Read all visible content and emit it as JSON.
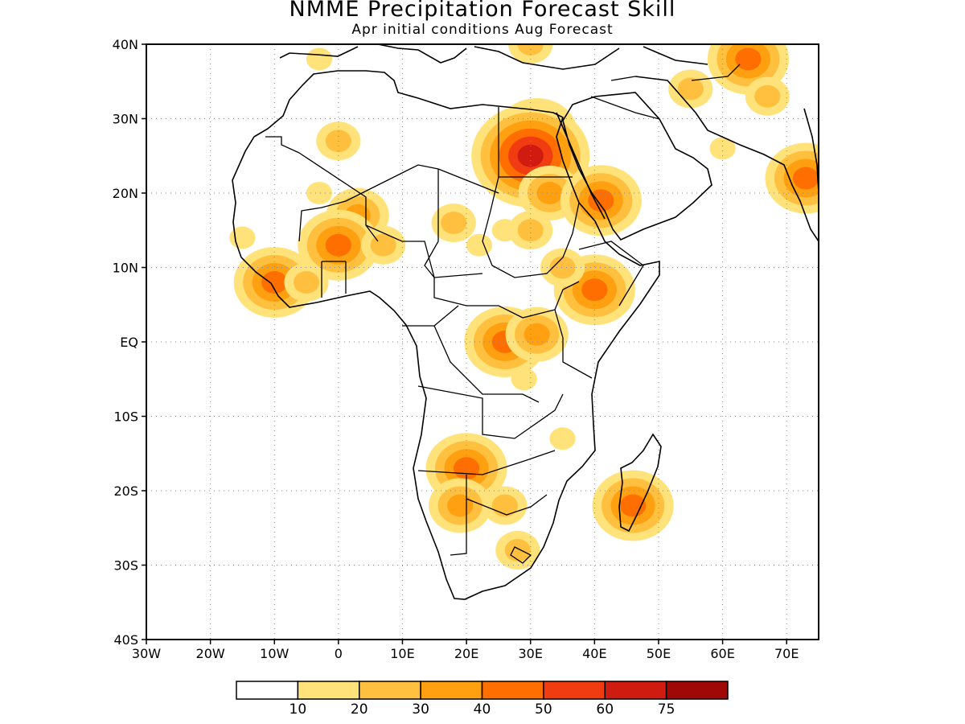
{
  "title": "NMME Precipitation Forecast Skill",
  "subtitle": "Apr initial conditions  Aug Forecast",
  "lat_ticks": [
    "40N",
    "30N",
    "20N",
    "10N",
    "EQ",
    "10S",
    "20S",
    "30S",
    "40S"
  ],
  "lon_ticks": [
    "30W",
    "20W",
    "10W",
    "0",
    "10E",
    "20E",
    "30E",
    "40E",
    "50E",
    "60E",
    "70E"
  ],
  "colorbar": {
    "boundaries": [
      "10",
      "20",
      "30",
      "40",
      "50",
      "60",
      "75"
    ],
    "colors": [
      "#ffffff",
      "#ffe37a",
      "#ffc040",
      "#ffa010",
      "#ff6e00",
      "#f03c10",
      "#d01c10",
      "#a00808"
    ]
  },
  "map_extent": {
    "lon": [
      -30,
      75
    ],
    "lat": [
      -40,
      40
    ]
  },
  "skill_regions": [
    {
      "lon": 31,
      "lat": 28,
      "level": 4
    },
    {
      "lon": 30,
      "lat": 25,
      "level": 6
    },
    {
      "lon": 33,
      "lat": 20,
      "level": 3
    },
    {
      "lon": 30,
      "lat": 15,
      "level": 2
    },
    {
      "lon": 26,
      "lat": 15,
      "level": 1
    },
    {
      "lon": 0,
      "lat": 27,
      "level": 2
    },
    {
      "lon": -3,
      "lat": 20,
      "level": 1
    },
    {
      "lon": 3,
      "lat": 17,
      "level": 3
    },
    {
      "lon": 0,
      "lat": 13,
      "level": 4
    },
    {
      "lon": 7,
      "lat": 13,
      "level": 2
    },
    {
      "lon": -10,
      "lat": 8,
      "level": 4
    },
    {
      "lon": -5,
      "lat": 8,
      "level": 2
    },
    {
      "lon": -15,
      "lat": 14,
      "level": 1
    },
    {
      "lon": 18,
      "lat": 16,
      "level": 2
    },
    {
      "lon": 22,
      "lat": 13,
      "level": 1
    },
    {
      "lon": 41,
      "lat": 19,
      "level": 4
    },
    {
      "lon": 40,
      "lat": 7,
      "level": 4
    },
    {
      "lon": 35,
      "lat": 10,
      "level": 2
    },
    {
      "lon": 26,
      "lat": 0,
      "level": 4
    },
    {
      "lon": 31,
      "lat": 1,
      "level": 3
    },
    {
      "lon": 29,
      "lat": -5,
      "level": 1
    },
    {
      "lon": 20,
      "lat": -17,
      "level": 4
    },
    {
      "lon": 19,
      "lat": -22,
      "level": 3
    },
    {
      "lon": 26,
      "lat": -22,
      "level": 2
    },
    {
      "lon": 28,
      "lat": -28,
      "level": 2
    },
    {
      "lon": 46,
      "lat": -22,
      "level": 4
    },
    {
      "lon": 35,
      "lat": -13,
      "level": 1
    },
    {
      "lon": 64,
      "lat": 38,
      "level": 4
    },
    {
      "lon": 67,
      "lat": 33,
      "level": 2
    },
    {
      "lon": 73,
      "lat": 22,
      "level": 4
    },
    {
      "lon": 55,
      "lat": 34,
      "level": 2
    },
    {
      "lon": 30,
      "lat": 40,
      "level": 2
    },
    {
      "lon": -3,
      "lat": 38,
      "level": 1
    },
    {
      "lon": 60,
      "lat": 26,
      "level": 1
    }
  ]
}
